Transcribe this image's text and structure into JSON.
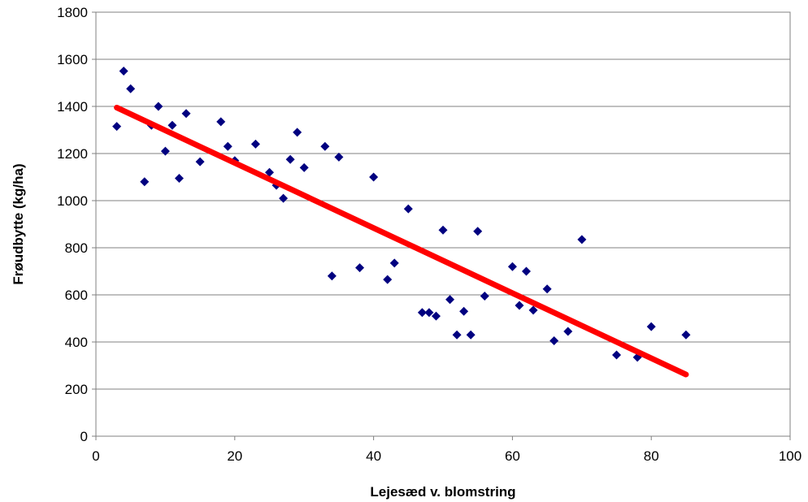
{
  "chart_data": {
    "type": "scatter",
    "title": "",
    "xlabel": "Lejesæd v. blomstring",
    "ylabel": "Frøudbytte (kg/ha)",
    "xlim": [
      0,
      100
    ],
    "ylim": [
      0,
      1800
    ],
    "x_ticks": [
      "0",
      "20",
      "40",
      "60",
      "80",
      "100"
    ],
    "y_ticks": [
      "0",
      "200",
      "400",
      "600",
      "800",
      "1000",
      "1200",
      "1400",
      "1600",
      "1800"
    ],
    "grid": "horizontal",
    "legend": "none",
    "series": [
      {
        "marker": "diamond",
        "color": "#000080",
        "points": [
          [
            3,
            1315
          ],
          [
            4,
            1550
          ],
          [
            5,
            1475
          ],
          [
            7,
            1080
          ],
          [
            8,
            1320
          ],
          [
            9,
            1400
          ],
          [
            10,
            1210
          ],
          [
            11,
            1320
          ],
          [
            12,
            1095
          ],
          [
            13,
            1370
          ],
          [
            15,
            1165
          ],
          [
            18,
            1335
          ],
          [
            19,
            1230
          ],
          [
            20,
            1170
          ],
          [
            23,
            1240
          ],
          [
            25,
            1120
          ],
          [
            26,
            1065
          ],
          [
            27,
            1010
          ],
          [
            28,
            1175
          ],
          [
            29,
            1290
          ],
          [
            30,
            1140
          ],
          [
            33,
            1230
          ],
          [
            34,
            680
          ],
          [
            35,
            1185
          ],
          [
            38,
            715
          ],
          [
            40,
            1100
          ],
          [
            42,
            665
          ],
          [
            43,
            735
          ],
          [
            45,
            965
          ],
          [
            47,
            525
          ],
          [
            48,
            525
          ],
          [
            49,
            510
          ],
          [
            50,
            875
          ],
          [
            51,
            580
          ],
          [
            52,
            430
          ],
          [
            53,
            530
          ],
          [
            54,
            430
          ],
          [
            55,
            870
          ],
          [
            56,
            595
          ],
          [
            60,
            720
          ],
          [
            61,
            555
          ],
          [
            62,
            700
          ],
          [
            63,
            535
          ],
          [
            65,
            625
          ],
          [
            66,
            405
          ],
          [
            68,
            445
          ],
          [
            70,
            835
          ],
          [
            75,
            345
          ],
          [
            78,
            335
          ],
          [
            80,
            465
          ],
          [
            85,
            430
          ]
        ]
      }
    ],
    "trendline": {
      "color": "#ff0000",
      "from": [
        3,
        1395
      ],
      "to": [
        85,
        262
      ]
    }
  }
}
